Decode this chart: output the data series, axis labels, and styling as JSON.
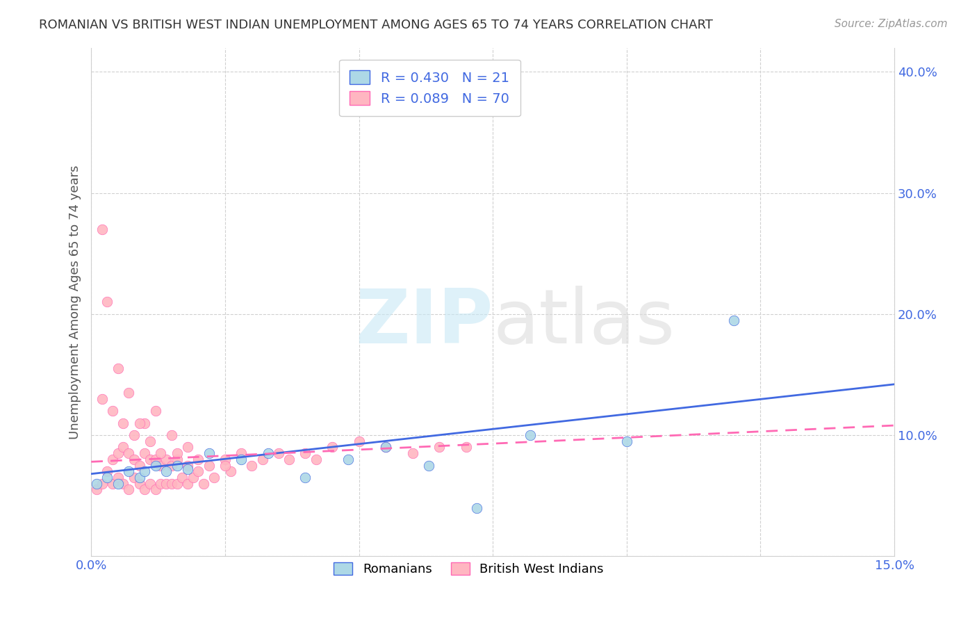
{
  "title": "ROMANIAN VS BRITISH WEST INDIAN UNEMPLOYMENT AMONG AGES 65 TO 74 YEARS CORRELATION CHART",
  "source": "Source: ZipAtlas.com",
  "ylabel": "Unemployment Among Ages 65 to 74 years",
  "xlim": [
    0.0,
    0.15
  ],
  "ylim": [
    0.0,
    0.42
  ],
  "xticks": [
    0.0,
    0.025,
    0.05,
    0.075,
    0.1,
    0.125,
    0.15
  ],
  "xtick_labels": [
    "0.0%",
    "",
    "",
    "",
    "",
    "",
    "15.0%"
  ],
  "yticks": [
    0.0,
    0.1,
    0.2,
    0.3,
    0.4
  ],
  "ytick_labels_right": [
    "",
    "10.0%",
    "20.0%",
    "30.0%",
    "40.0%"
  ],
  "romanian_fill_color": "#ADD8E6",
  "romanian_edge_color": "#4169E1",
  "bwi_fill_color": "#FFB6C1",
  "bwi_edge_color": "#FF69B4",
  "romanian_line_color": "#4169E1",
  "bwi_line_color": "#FF69B4",
  "legend_r_romanian": "R = 0.430",
  "legend_n_romanian": "N = 21",
  "legend_r_bwi": "R = 0.089",
  "legend_n_bwi": "N = 70",
  "rom_x": [
    0.001,
    0.003,
    0.005,
    0.007,
    0.009,
    0.01,
    0.012,
    0.014,
    0.016,
    0.018,
    0.022,
    0.028,
    0.033,
    0.04,
    0.048,
    0.055,
    0.063,
    0.072,
    0.082,
    0.1,
    0.12
  ],
  "rom_y": [
    0.06,
    0.065,
    0.06,
    0.07,
    0.065,
    0.07,
    0.075,
    0.07,
    0.075,
    0.072,
    0.085,
    0.08,
    0.085,
    0.065,
    0.08,
    0.09,
    0.075,
    0.04,
    0.1,
    0.095,
    0.195
  ],
  "bwi_x": [
    0.001,
    0.002,
    0.003,
    0.004,
    0.004,
    0.005,
    0.005,
    0.006,
    0.006,
    0.007,
    0.007,
    0.008,
    0.008,
    0.009,
    0.009,
    0.01,
    0.01,
    0.011,
    0.011,
    0.012,
    0.012,
    0.013,
    0.013,
    0.014,
    0.014,
    0.015,
    0.015,
    0.016,
    0.016,
    0.017,
    0.018,
    0.018,
    0.019,
    0.02,
    0.021,
    0.022,
    0.023,
    0.025,
    0.026,
    0.028,
    0.03,
    0.032,
    0.035,
    0.037,
    0.04,
    0.042,
    0.045,
    0.05,
    0.055,
    0.06,
    0.065,
    0.07,
    0.002,
    0.004,
    0.006,
    0.008,
    0.01,
    0.012,
    0.015,
    0.018,
    0.002,
    0.003,
    0.005,
    0.007,
    0.009,
    0.011,
    0.013,
    0.016,
    0.02,
    0.025
  ],
  "bwi_y": [
    0.055,
    0.06,
    0.07,
    0.06,
    0.08,
    0.065,
    0.085,
    0.06,
    0.09,
    0.055,
    0.085,
    0.065,
    0.08,
    0.06,
    0.075,
    0.055,
    0.085,
    0.06,
    0.08,
    0.055,
    0.08,
    0.06,
    0.075,
    0.06,
    0.08,
    0.06,
    0.075,
    0.06,
    0.08,
    0.065,
    0.06,
    0.075,
    0.065,
    0.07,
    0.06,
    0.075,
    0.065,
    0.08,
    0.07,
    0.085,
    0.075,
    0.08,
    0.085,
    0.08,
    0.085,
    0.08,
    0.09,
    0.095,
    0.09,
    0.085,
    0.09,
    0.09,
    0.13,
    0.12,
    0.11,
    0.1,
    0.11,
    0.12,
    0.1,
    0.09,
    0.27,
    0.21,
    0.155,
    0.135,
    0.11,
    0.095,
    0.085,
    0.085,
    0.08,
    0.075
  ],
  "rom_trend_x": [
    0.0,
    0.15
  ],
  "rom_trend_y": [
    0.068,
    0.142
  ],
  "bwi_trend_x": [
    0.0,
    0.15
  ],
  "bwi_trend_y": [
    0.078,
    0.108
  ]
}
